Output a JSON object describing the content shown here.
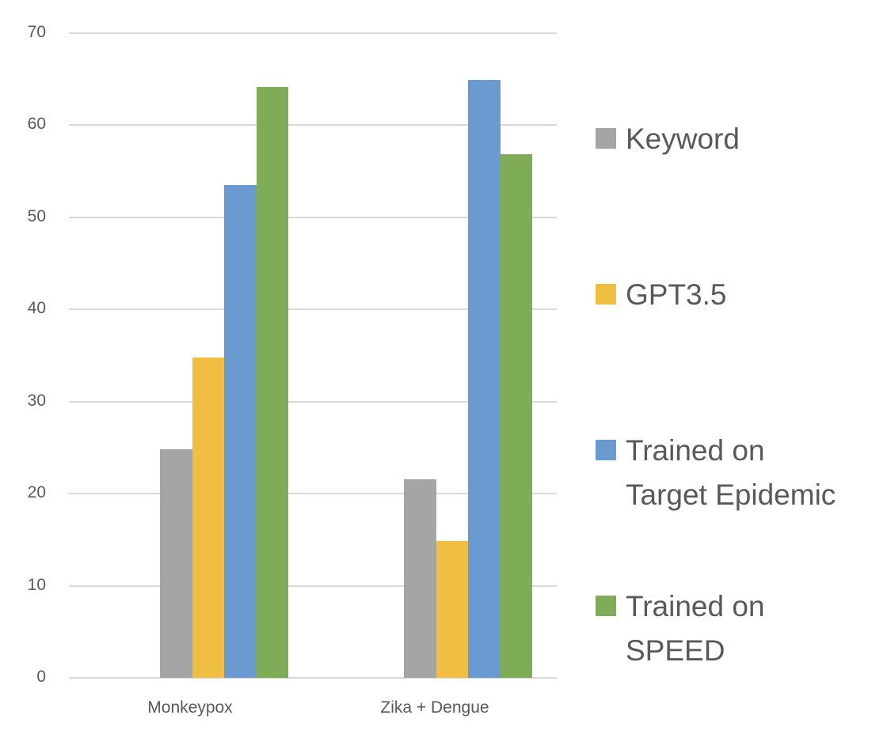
{
  "chart_data": {
    "type": "bar",
    "title": "",
    "xlabel": "",
    "ylabel": "",
    "ylim": [
      0,
      70
    ],
    "yticks": [
      0,
      10,
      20,
      30,
      40,
      50,
      60,
      70
    ],
    "grid": true,
    "legend_position": "right",
    "categories": [
      "Monkeypox",
      "Zika + Dengue"
    ],
    "series": [
      {
        "name": "Keyword",
        "color": "#a5a5a5",
        "values": [
          24.8,
          21.6
        ]
      },
      {
        "name": "GPT3.5",
        "color": "#f0bf41",
        "values": [
          34.8,
          14.9
        ]
      },
      {
        "name": "Trained on Target Epidemic",
        "color": "#6a9ad0",
        "values": [
          53.5,
          64.9
        ]
      },
      {
        "name": "Trained on SPEED",
        "color": "#7fac56",
        "values": [
          64.2,
          56.9
        ]
      }
    ]
  },
  "legend": {
    "items": [
      {
        "label": "Keyword",
        "color": "#a5a5a5"
      },
      {
        "label": "GPT3.5",
        "color": "#f0bf41"
      },
      {
        "label": "Trained on Target Epidemic",
        "color": "#6a9ad0"
      },
      {
        "label": "Trained on SPEED",
        "color": "#7fac56"
      }
    ]
  },
  "axis": {
    "y_labels": [
      "0",
      "10",
      "20",
      "30",
      "40",
      "50",
      "60",
      "70"
    ],
    "x_labels": [
      "Monkeypox",
      "Zika + Dengue"
    ]
  }
}
